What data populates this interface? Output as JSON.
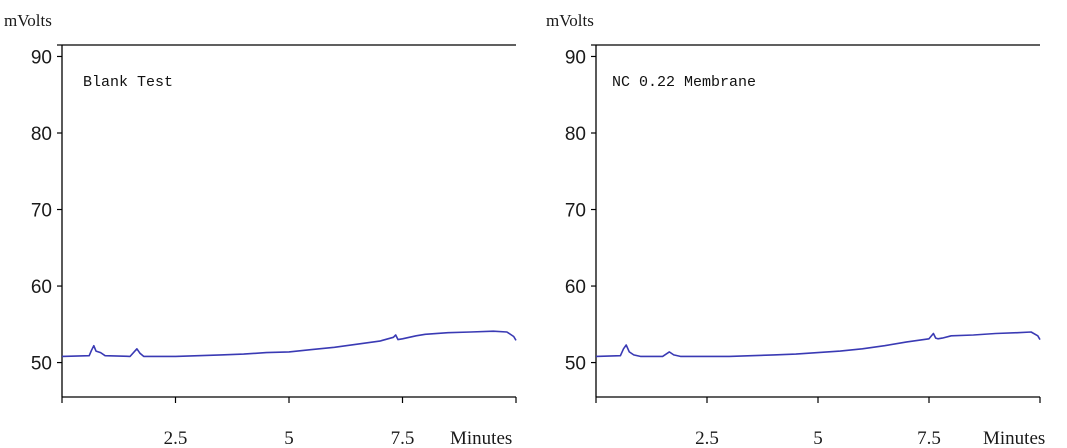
{
  "chart_data": [
    {
      "type": "line",
      "title": "Blank Test",
      "ylabel": "mVolts",
      "xlabel": "Minutes",
      "ylim": [
        45.5,
        91.5
      ],
      "xlim": [
        0,
        10
      ],
      "yticks": [
        50,
        60,
        70,
        80,
        90
      ],
      "xticks": [
        2.5,
        5,
        7.5
      ],
      "ytick_labels": [
        "50",
        "60",
        "70",
        "80",
        "90"
      ],
      "xtick_labels": [
        "2.5",
        "5",
        "7.5"
      ],
      "grid": false,
      "series": [
        {
          "color": "#3a3ab4",
          "x": [
            0,
            0.6,
            0.65,
            0.7,
            0.75,
            0.85,
            0.95,
            1.5,
            1.65,
            1.72,
            1.8,
            2.0,
            2.5,
            3.0,
            3.5,
            4.0,
            4.5,
            5.0,
            5.5,
            6.0,
            6.5,
            7.0,
            7.3,
            7.35,
            7.4,
            7.5,
            7.8,
            8.0,
            8.5,
            9.0,
            9.5,
            9.8,
            9.95,
            10
          ],
          "y": [
            50.8,
            50.9,
            51.6,
            52.2,
            51.5,
            51.3,
            50.9,
            50.8,
            51.8,
            51.2,
            50.8,
            50.8,
            50.8,
            50.9,
            51.0,
            51.1,
            51.3,
            51.4,
            51.7,
            52.0,
            52.4,
            52.8,
            53.3,
            53.6,
            53.0,
            53.1,
            53.5,
            53.7,
            53.9,
            54.0,
            54.1,
            54.0,
            53.4,
            52.9
          ]
        }
      ]
    },
    {
      "type": "line",
      "title": "NC 0.22 Membrane",
      "ylabel": "mVolts",
      "xlabel": "Minutes",
      "ylim": [
        45.5,
        91.5
      ],
      "xlim": [
        0,
        10
      ],
      "yticks": [
        50,
        60,
        70,
        80,
        90
      ],
      "xticks": [
        2.5,
        5,
        7.5
      ],
      "ytick_labels": [
        "50",
        "60",
        "70",
        "80",
        "90"
      ],
      "xtick_labels": [
        "2.5",
        "5",
        "7.5"
      ],
      "grid": false,
      "series": [
        {
          "color": "#3a3ab4",
          "x": [
            0,
            0.55,
            0.62,
            0.68,
            0.75,
            0.85,
            1.0,
            1.5,
            1.65,
            1.75,
            1.9,
            2.5,
            3.0,
            3.5,
            4.0,
            4.5,
            5.0,
            5.5,
            6.0,
            6.5,
            7.0,
            7.5,
            7.6,
            7.65,
            7.7,
            7.8,
            8.0,
            8.5,
            9.0,
            9.5,
            9.8,
            9.95,
            10
          ],
          "y": [
            50.8,
            50.9,
            51.8,
            52.3,
            51.4,
            51.0,
            50.8,
            50.8,
            51.4,
            51.0,
            50.8,
            50.8,
            50.8,
            50.9,
            51.0,
            51.1,
            51.3,
            51.5,
            51.8,
            52.2,
            52.7,
            53.1,
            53.8,
            53.2,
            53.1,
            53.2,
            53.5,
            53.6,
            53.8,
            53.9,
            54.0,
            53.5,
            53.0
          ]
        }
      ]
    }
  ]
}
